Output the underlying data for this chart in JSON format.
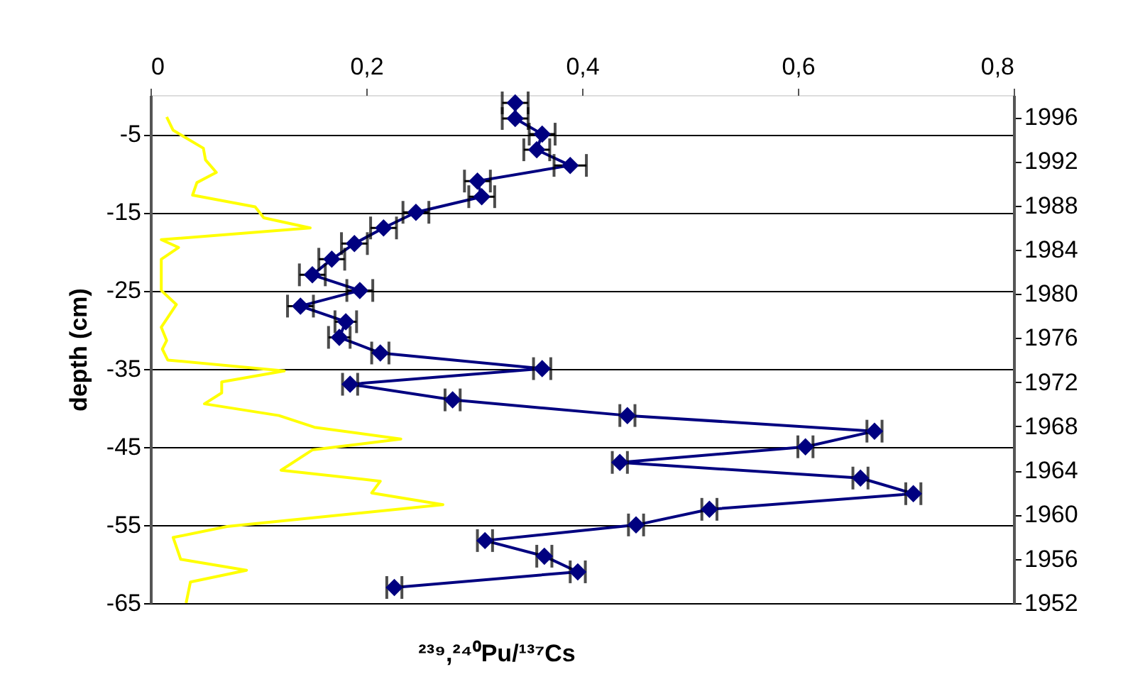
{
  "chart_data": {
    "type": "line",
    "xlabel": "²³⁹,²⁴⁰Pu/¹³⁷Cs",
    "ylabel": "depth (cm)",
    "xlim": [
      0,
      0.8
    ],
    "xticks": [
      0,
      {
        "value": 0.2,
        "label": "0,2"
      },
      {
        "value": 0.4,
        "label": "0,4"
      },
      {
        "value": 0.6,
        "label": "0,6"
      },
      {
        "value": 0.8,
        "label": "0,8"
      }
    ],
    "ylim": [
      -65,
      0
    ],
    "yticks": [
      -5,
      -15,
      -25,
      -35,
      -45,
      -55,
      -65
    ],
    "y2lim": [
      1952,
      1998
    ],
    "y2ticks": [
      1952,
      1956,
      1960,
      1964,
      1968,
      1972,
      1976,
      1980,
      1984,
      1988,
      1992,
      1996
    ],
    "grid": "y",
    "line_style": "solid",
    "series": [
      {
        "color": "#000080",
        "marker": "diamond",
        "x": [
          0.338,
          0.338,
          0.363,
          0.358,
          0.389,
          0.303,
          0.307,
          0.246,
          0.216,
          0.189,
          0.168,
          0.15,
          0.194,
          0.139,
          0.181,
          0.175,
          0.213,
          0.363,
          0.185,
          0.28,
          0.442,
          0.671,
          0.607,
          0.435,
          0.658,
          0.707,
          0.518,
          0.45,
          0.31,
          0.365,
          0.396,
          0.226
        ],
        "values": [
          -1,
          -3,
          -5,
          -7,
          -9,
          -11,
          -13,
          -15,
          -17,
          -19,
          -21,
          -23,
          -25,
          -27,
          -29,
          -31,
          -33,
          -35,
          -37,
          -39,
          -41,
          -43,
          -45,
          -47,
          -49,
          -51,
          -53,
          -55,
          -57,
          -59,
          -61,
          -63
        ],
        "xerrors": [
          0.012,
          0.012,
          0.012,
          0.012,
          0.015,
          0.012,
          0.012,
          0.012,
          0.012,
          0.012,
          0.012,
          0.012,
          0.012,
          0.012,
          0.01,
          0.01,
          0.008,
          0.008,
          0.007,
          0.007,
          0.007,
          0.007,
          0.007,
          0.007,
          0.007,
          0.007,
          0.007,
          0.007,
          0.007,
          0.007,
          0.007,
          0.007
        ]
      },
      {
        "color": "#ffff00",
        "marker": "none",
        "x": [
          0.015,
          0.021,
          0.049,
          0.051,
          0.061,
          0.043,
          0.039,
          0.097,
          0.105,
          0.148,
          0.01,
          0.026,
          0.01,
          0.01,
          0.024,
          0.01,
          0.015,
          0.011,
          0.016,
          0.124,
          0.066,
          0.066,
          0.05,
          0.119,
          0.152,
          0.232,
          0.15,
          0.121,
          0.213,
          0.205,
          0.271,
          0.071,
          0.021,
          0.028,
          0.089,
          0.037,
          0.033
        ],
        "values": [
          -2.8,
          -4.5,
          -6.8,
          -8.3,
          -9.9,
          -11.2,
          -12.8,
          -14.3,
          -15.7,
          -17,
          -18.5,
          -19.5,
          -21,
          -25,
          -26.8,
          -29.7,
          -31.4,
          -32.5,
          -33.9,
          -35.3,
          -36.7,
          -38.1,
          -39.5,
          -41,
          -42.5,
          -44,
          -45.4,
          -48,
          -49.4,
          -50.9,
          -52.4,
          -55.2,
          -56.6,
          -59.4,
          -60.8,
          -62.3,
          -65
        ]
      }
    ]
  }
}
